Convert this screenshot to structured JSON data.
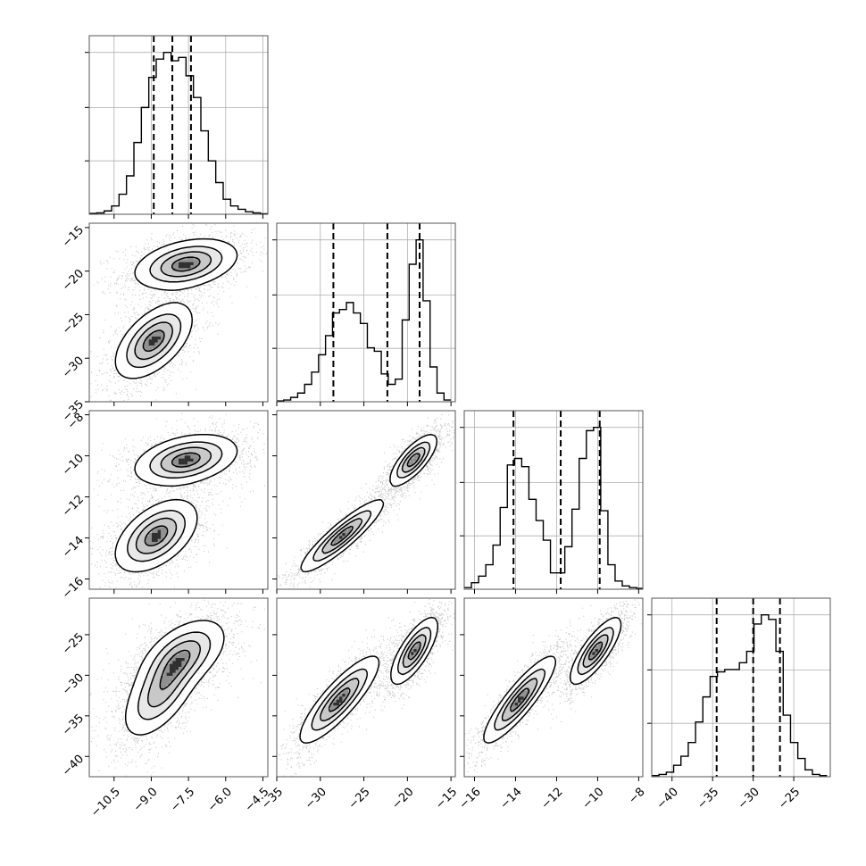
{
  "chart_data": {
    "type": "corner",
    "params": [
      {
        "range": [
          -11.5,
          -4.3
        ],
        "ticks": [
          "-10.5",
          "-9.0",
          "-7.5",
          "-6.0",
          "-4.5"
        ],
        "tick_values": [
          -10.5,
          -9.0,
          -7.5,
          -6.0,
          -4.5
        ],
        "quantiles": [
          -8.9,
          -8.15,
          -7.4
        ]
      },
      {
        "range": [
          -35,
          -14.5
        ],
        "ticks": [
          "-35",
          "-30",
          "-25",
          "-20",
          "-15"
        ],
        "tick_values": [
          -35,
          -30,
          -25,
          -20,
          -15
        ],
        "quantiles": [
          -28.5,
          -22.3,
          -18.6
        ]
      },
      {
        "range": [
          -16.5,
          -7.8
        ],
        "ticks": [
          "-16",
          "-14",
          "-12",
          "-10",
          "-8"
        ],
        "tick_values": [
          -16,
          -14,
          -12,
          -10,
          -8
        ],
        "quantiles": [
          -14.1,
          -11.8,
          -9.9
        ]
      },
      {
        "range": [
          -42.5,
          -20.5
        ],
        "ticks": [
          "-40",
          "-35",
          "-30",
          "-25"
        ],
        "tick_values": [
          -40,
          -35,
          -30,
          -25
        ],
        "quantiles": [
          -34.5,
          -30.0,
          -26.7
        ]
      }
    ],
    "histograms": [
      {
        "bins": [
          -11.5,
          -11.2,
          -10.9,
          -10.6,
          -10.3,
          -10.0,
          -9.7,
          -9.4,
          -9.1,
          -8.8,
          -8.5,
          -8.2,
          -7.9,
          -7.6,
          -7.3,
          -7.0,
          -6.7,
          -6.4,
          -6.1,
          -5.8,
          -5.5,
          -5.2,
          -4.9,
          -4.6,
          -4.3
        ],
        "counts": [
          0.005,
          0.008,
          0.02,
          0.05,
          0.12,
          0.23,
          0.43,
          0.64,
          0.82,
          0.93,
          0.97,
          0.92,
          0.94,
          0.83,
          0.7,
          0.5,
          0.32,
          0.19,
          0.09,
          0.05,
          0.03,
          0.015,
          0.008,
          0.003
        ]
      },
      {
        "bins": [
          -35.0,
          -34.2,
          -33.4,
          -32.6,
          -31.8,
          -31.0,
          -30.2,
          -29.4,
          -28.6,
          -27.8,
          -27.0,
          -26.2,
          -25.4,
          -24.6,
          -23.8,
          -23.0,
          -22.2,
          -21.4,
          -20.6,
          -19.8,
          -19.0,
          -18.2,
          -17.4,
          -16.6,
          -15.8,
          -15.0
        ],
        "counts": [
          0.005,
          0.01,
          0.025,
          0.05,
          0.1,
          0.17,
          0.27,
          0.38,
          0.51,
          0.53,
          0.57,
          0.51,
          0.45,
          0.31,
          0.29,
          0.16,
          0.1,
          0.13,
          0.47,
          0.79,
          0.93,
          0.58,
          0.2,
          0.05,
          0.01
        ]
      },
      {
        "bins": [
          -16.5,
          -16.15,
          -15.8,
          -15.45,
          -15.1,
          -14.75,
          -14.4,
          -14.05,
          -13.7,
          -13.35,
          -13.0,
          -12.65,
          -12.3,
          -11.95,
          -11.6,
          -11.25,
          -10.9,
          -10.55,
          -10.2,
          -9.85,
          -9.5,
          -9.15,
          -8.8,
          -8.45,
          -8.1,
          -7.8
        ],
        "counts": [
          0.01,
          0.04,
          0.08,
          0.15,
          0.27,
          0.5,
          0.76,
          0.8,
          0.75,
          0.55,
          0.42,
          0.3,
          0.1,
          0.1,
          0.26,
          0.49,
          0.8,
          0.97,
          0.99,
          0.48,
          0.15,
          0.05,
          0.02,
          0.01,
          0.005
        ]
      },
      {
        "bins": [
          -42.5,
          -41.6,
          -40.7,
          -39.8,
          -38.9,
          -38.0,
          -37.1,
          -36.2,
          -35.3,
          -34.4,
          -33.5,
          -32.6,
          -31.7,
          -30.8,
          -29.9,
          -29.0,
          -28.1,
          -27.2,
          -26.3,
          -25.4,
          -24.5,
          -23.6,
          -22.7,
          -21.8,
          -20.9
        ],
        "counts": [
          0.005,
          0.01,
          0.02,
          0.05,
          0.09,
          0.15,
          0.24,
          0.35,
          0.44,
          0.46,
          0.47,
          0.47,
          0.5,
          0.55,
          0.67,
          0.71,
          0.69,
          0.55,
          0.27,
          0.15,
          0.08,
          0.03,
          0.01,
          0.005
        ]
      }
    ],
    "pairs": [
      {
        "x": 0,
        "y": 1,
        "modes": [
          {
            "mx": -7.6,
            "my": -19.2,
            "sx": 1.0,
            "sy": 1.4,
            "rho": 0.35,
            "w": 0.5
          },
          {
            "mx": -8.9,
            "my": -28.0,
            "sx": 0.75,
            "sy": 2.1,
            "rho": 0.55,
            "w": 0.5
          }
        ]
      },
      {
        "x": 0,
        "y": 2,
        "modes": [
          {
            "mx": -7.6,
            "my": -10.2,
            "sx": 1.0,
            "sy": 0.6,
            "rho": 0.35,
            "w": 0.5
          },
          {
            "mx": -8.8,
            "my": -13.9,
            "sx": 0.8,
            "sy": 0.85,
            "rho": 0.5,
            "w": 0.5
          }
        ]
      },
      {
        "x": 0,
        "y": 3,
        "modes": [
          {
            "mx": -7.7,
            "my": -27.5,
            "sx": 0.85,
            "sy": 2.2,
            "rho": 0.5,
            "w": 0.5
          },
          {
            "mx": -8.6,
            "my": -32.0,
            "sx": 0.75,
            "sy": 2.8,
            "rho": 0.6,
            "w": 0.5
          }
        ]
      },
      {
        "x": 1,
        "y": 2,
        "modes": [
          {
            "mx": -19.3,
            "my": -10.2,
            "sx": 1.3,
            "sy": 0.6,
            "rho": 0.75,
            "w": 0.5
          },
          {
            "mx": -27.5,
            "my": -13.9,
            "sx": 2.3,
            "sy": 0.85,
            "rho": 0.9,
            "w": 0.5
          }
        ]
      },
      {
        "x": 1,
        "y": 3,
        "modes": [
          {
            "mx": -19.2,
            "my": -27.0,
            "sx": 1.3,
            "sy": 2.0,
            "rho": 0.75,
            "w": 0.5
          },
          {
            "mx": -27.8,
            "my": -33.0,
            "sx": 2.2,
            "sy": 2.6,
            "rho": 0.85,
            "w": 0.5
          }
        ]
      },
      {
        "x": 2,
        "y": 3,
        "modes": [
          {
            "mx": -10.1,
            "my": -27.0,
            "sx": 0.6,
            "sy": 2.0,
            "rho": 0.8,
            "w": 0.5
          },
          {
            "mx": -13.8,
            "my": -33.0,
            "sx": 0.85,
            "sy": 2.6,
            "rho": 0.88,
            "w": 0.5
          }
        ]
      }
    ],
    "grid": true,
    "sample_points": "gray scatter with 2D histogram shading and 4 contour levels"
  }
}
